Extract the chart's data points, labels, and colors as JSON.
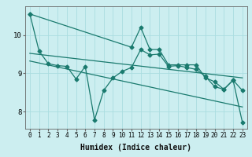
{
  "xlabel": "Humidex (Indice chaleur)",
  "bg_color": "#cceef0",
  "line_color": "#1a7a6e",
  "grid_color": "#aadde0",
  "xlim": [
    -0.5,
    23.5
  ],
  "ylim": [
    7.55,
    10.75
  ],
  "xticks": [
    0,
    1,
    2,
    3,
    4,
    5,
    6,
    7,
    8,
    9,
    10,
    11,
    12,
    13,
    14,
    15,
    16,
    17,
    18,
    19,
    20,
    21,
    22,
    23
  ],
  "yticks": [
    8,
    9,
    10
  ],
  "line1_x": [
    0,
    1,
    2,
    3,
    4,
    5,
    6,
    7,
    8,
    9,
    10,
    11,
    12,
    13,
    14,
    15,
    16,
    17,
    18,
    19,
    20,
    21,
    22,
    23
  ],
  "line1_y": [
    10.55,
    9.58,
    9.25,
    9.2,
    9.18,
    8.85,
    9.18,
    7.78,
    8.55,
    8.88,
    9.05,
    9.15,
    9.62,
    9.48,
    9.5,
    9.18,
    9.2,
    9.15,
    9.1,
    8.92,
    8.65,
    8.58,
    8.82,
    8.55
  ],
  "line2_x": [
    0,
    11,
    12,
    13,
    14,
    15,
    16,
    17,
    18,
    19,
    20,
    21,
    22,
    23
  ],
  "line2_y": [
    10.55,
    9.68,
    10.2,
    9.62,
    9.62,
    9.22,
    9.22,
    9.22,
    9.22,
    8.88,
    8.78,
    8.58,
    8.82,
    7.72
  ],
  "line3_x": [
    0,
    23
  ],
  "line3_y": [
    9.52,
    8.88
  ],
  "line4_x": [
    0,
    23
  ],
  "line4_y": [
    9.32,
    8.12
  ],
  "marker_size": 2.5,
  "linewidth": 0.9,
  "font_size": 7
}
